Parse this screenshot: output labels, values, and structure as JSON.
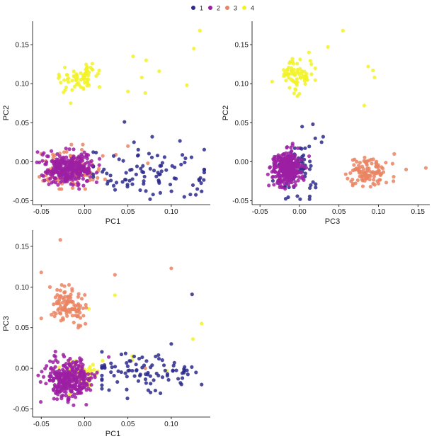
{
  "legend": {
    "entries": [
      {
        "label": "1",
        "color": "#2d2a8c"
      },
      {
        "label": "2",
        "color": "#9c1fa3"
      },
      {
        "label": "3",
        "color": "#ea8461"
      },
      {
        "label": "4",
        "color": "#f2f227"
      }
    ]
  },
  "chart_data": [
    {
      "type": "scatter",
      "title": "",
      "xlabel": "PC1",
      "ylabel": "PC2",
      "xlim": [
        -0.06,
        0.145
      ],
      "ylim": [
        -0.055,
        0.18
      ],
      "xticks": [
        -0.05,
        0.0,
        0.05,
        0.1
      ],
      "xtick_labels": [
        "-0.05",
        "0.00",
        "0.05",
        "0.10"
      ],
      "yticks": [
        -0.05,
        0.0,
        0.05,
        0.1,
        0.15
      ],
      "ytick_labels": [
        "-0.05",
        "0.00",
        "0.05",
        "0.10",
        "0.15"
      ],
      "clusters": [
        {
          "cluster": "1",
          "color": "#2d2a8c",
          "count": 95,
          "points": [
            [
              0.046,
              0.051
            ],
            [
              0.078,
              0.032
            ],
            [
              0.057,
              0.025
            ],
            [
              0.13,
              -0.035
            ],
            [
              0.122,
              -0.042
            ],
            [
              0.115,
              -0.045
            ],
            [
              0.125,
              -0.03
            ],
            [
              0.135,
              -0.038
            ]
          ],
          "cloud": {
            "x_mean": 0.07,
            "x_sd": 0.035,
            "y_mean": -0.015,
            "y_sd": 0.016,
            "x_range": [
              0.01,
              0.138
            ],
            "y_range": [
              -0.048,
              0.045
            ]
          }
        },
        {
          "cluster": "2",
          "color": "#9c1fa3",
          "count": 300,
          "points": [],
          "cloud": {
            "x_mean": -0.018,
            "x_sd": 0.014,
            "y_mean": -0.008,
            "y_sd": 0.01,
            "x_range": [
              -0.055,
              0.04
            ],
            "y_range": [
              -0.035,
              0.025
            ]
          }
        },
        {
          "cluster": "3",
          "color": "#ea8461",
          "count": 110,
          "points": [
            [
              -0.002,
              0.022
            ],
            [
              0.05,
              0.02
            ],
            [
              0.073,
              -0.002
            ],
            [
              -0.05,
              0.01
            ]
          ],
          "cloud": {
            "x_mean": -0.018,
            "x_sd": 0.018,
            "y_mean": -0.01,
            "y_sd": 0.012,
            "x_range": [
              -0.055,
              0.06
            ],
            "y_range": [
              -0.035,
              0.022
            ]
          }
        },
        {
          "cluster": "4",
          "color": "#f2f227",
          "count": 78,
          "points": [
            [
              0.133,
              0.168
            ],
            [
              0.126,
              0.145
            ],
            [
              0.118,
              0.098
            ],
            [
              0.071,
              0.13
            ],
            [
              0.086,
              0.116
            ],
            [
              0.056,
              0.135
            ],
            [
              0.066,
              0.108
            ],
            [
              0.05,
              0.09
            ],
            [
              0.07,
              0.088
            ],
            [
              -0.016,
              0.075
            ]
          ],
          "cloud": {
            "x_mean": -0.005,
            "x_sd": 0.012,
            "y_mean": 0.107,
            "y_sd": 0.01,
            "x_range": [
              -0.03,
              0.045
            ],
            "y_range": [
              0.08,
              0.135
            ]
          }
        }
      ]
    },
    {
      "type": "scatter",
      "title": "",
      "xlabel": "PC3",
      "ylabel": "PC2",
      "xlim": [
        -0.06,
        0.165
      ],
      "ylim": [
        -0.055,
        0.18
      ],
      "xticks": [
        -0.05,
        0.0,
        0.05,
        0.1,
        0.15
      ],
      "xtick_labels": [
        "-0.05",
        "0.00",
        "0.05",
        "0.10",
        "0.15"
      ],
      "yticks": [
        -0.05,
        0.0,
        0.05,
        0.1,
        0.15
      ],
      "ytick_labels": [
        "-0.05",
        "0.00",
        "0.05",
        "0.10",
        "0.15"
      ],
      "clusters": [
        {
          "cluster": "1",
          "color": "#2d2a8c",
          "count": 95,
          "points": [
            [
              0.017,
              0.048
            ],
            [
              0.03,
              0.032
            ],
            [
              0.028,
              0.025
            ],
            [
              0.02,
              0.03
            ]
          ],
          "cloud": {
            "x_mean": -0.008,
            "x_sd": 0.012,
            "y_mean": -0.01,
            "y_sd": 0.016,
            "x_range": [
              -0.035,
              0.035
            ],
            "y_range": [
              -0.048,
              0.045
            ]
          }
        },
        {
          "cluster": "2",
          "color": "#9c1fa3",
          "count": 300,
          "points": [],
          "cloud": {
            "x_mean": -0.015,
            "x_sd": 0.01,
            "y_mean": -0.008,
            "y_sd": 0.01,
            "x_range": [
              -0.04,
              0.035
            ],
            "y_range": [
              -0.035,
              0.025
            ]
          }
        },
        {
          "cluster": "3",
          "color": "#ea8461",
          "count": 110,
          "points": [
            [
              0.16,
              -0.008
            ],
            [
              0.135,
              -0.01
            ],
            [
              0.12,
              0.01
            ],
            [
              0.09,
              -0.032
            ],
            [
              0.1,
              -0.028
            ]
          ],
          "cloud": {
            "x_mean": 0.085,
            "x_sd": 0.014,
            "y_mean": -0.013,
            "y_sd": 0.009,
            "x_range": [
              0.055,
              0.14
            ],
            "y_range": [
              -0.035,
              0.012
            ]
          }
        },
        {
          "cluster": "4",
          "color": "#f2f227",
          "count": 78,
          "points": [
            [
              0.055,
              0.168
            ],
            [
              0.036,
              0.147
            ],
            [
              0.087,
              0.122
            ],
            [
              0.093,
              0.117
            ],
            [
              0.095,
              0.108
            ],
            [
              0.082,
              0.072
            ],
            [
              0.012,
              0.14
            ],
            [
              0.015,
              0.125
            ]
          ],
          "cloud": {
            "x_mean": -0.005,
            "x_sd": 0.009,
            "y_mean": 0.107,
            "y_sd": 0.01,
            "x_range": [
              -0.035,
              0.02
            ],
            "y_range": [
              0.08,
              0.135
            ]
          }
        }
      ]
    },
    {
      "type": "scatter",
      "title": "",
      "xlabel": "PC1",
      "ylabel": "PC3",
      "xlim": [
        -0.06,
        0.145
      ],
      "ylim": [
        -0.06,
        0.17
      ],
      "xticks": [
        -0.05,
        0.0,
        0.05,
        0.1
      ],
      "xtick_labels": [
        "-0.05",
        "0.00",
        "0.05",
        "0.10"
      ],
      "yticks": [
        -0.05,
        0.0,
        0.05,
        0.1,
        0.15
      ],
      "ytick_labels": [
        "-0.05",
        "0.00",
        "0.05",
        "0.10",
        "0.15"
      ],
      "clusters": [
        {
          "cluster": "1",
          "color": "#2d2a8c",
          "count": 95,
          "points": [
            [
              0.124,
              0.091
            ],
            [
              0.1,
              0.03
            ],
            [
              0.135,
              -0.02
            ]
          ],
          "cloud": {
            "x_mean": 0.07,
            "x_sd": 0.035,
            "y_mean": -0.005,
            "y_sd": 0.012,
            "x_range": [
              0.02,
              0.138
            ],
            "y_range": [
              -0.038,
              0.03
            ]
          }
        },
        {
          "cluster": "2",
          "color": "#9c1fa3",
          "count": 300,
          "points": [],
          "cloud": {
            "x_mean": -0.018,
            "x_sd": 0.014,
            "y_mean": -0.013,
            "y_sd": 0.012,
            "x_range": [
              -0.055,
              0.03
            ],
            "y_range": [
              -0.048,
              0.03
            ]
          }
        },
        {
          "cluster": "3",
          "color": "#ea8461",
          "count": 110,
          "points": [
            [
              -0.028,
              0.158
            ],
            [
              0.1,
              0.123
            ],
            [
              0.035,
              0.115
            ],
            [
              -0.05,
              0.118
            ],
            [
              -0.04,
              0.1
            ],
            [
              0.07,
              0.0
            ]
          ],
          "cloud": {
            "x_mean": -0.02,
            "x_sd": 0.009,
            "y_mean": 0.075,
            "y_sd": 0.012,
            "x_range": [
              -0.05,
              0.01
            ],
            "y_range": [
              0.05,
              0.12
            ]
          }
        },
        {
          "cluster": "4",
          "color": "#f2f227",
          "count": 78,
          "points": [
            [
              0.135,
              0.055
            ],
            [
              0.125,
              0.036
            ],
            [
              0.035,
              0.09
            ],
            [
              0.055,
              0.01
            ],
            [
              0.055,
              0.015
            ],
            [
              0.095,
              -0.003
            ],
            [
              0.005,
              0.073
            ]
          ],
          "cloud": {
            "x_mean": -0.005,
            "x_sd": 0.012,
            "y_mean": -0.01,
            "y_sd": 0.01,
            "x_range": [
              -0.03,
              0.04
            ],
            "y_range": [
              -0.032,
              0.02
            ]
          }
        }
      ]
    }
  ]
}
